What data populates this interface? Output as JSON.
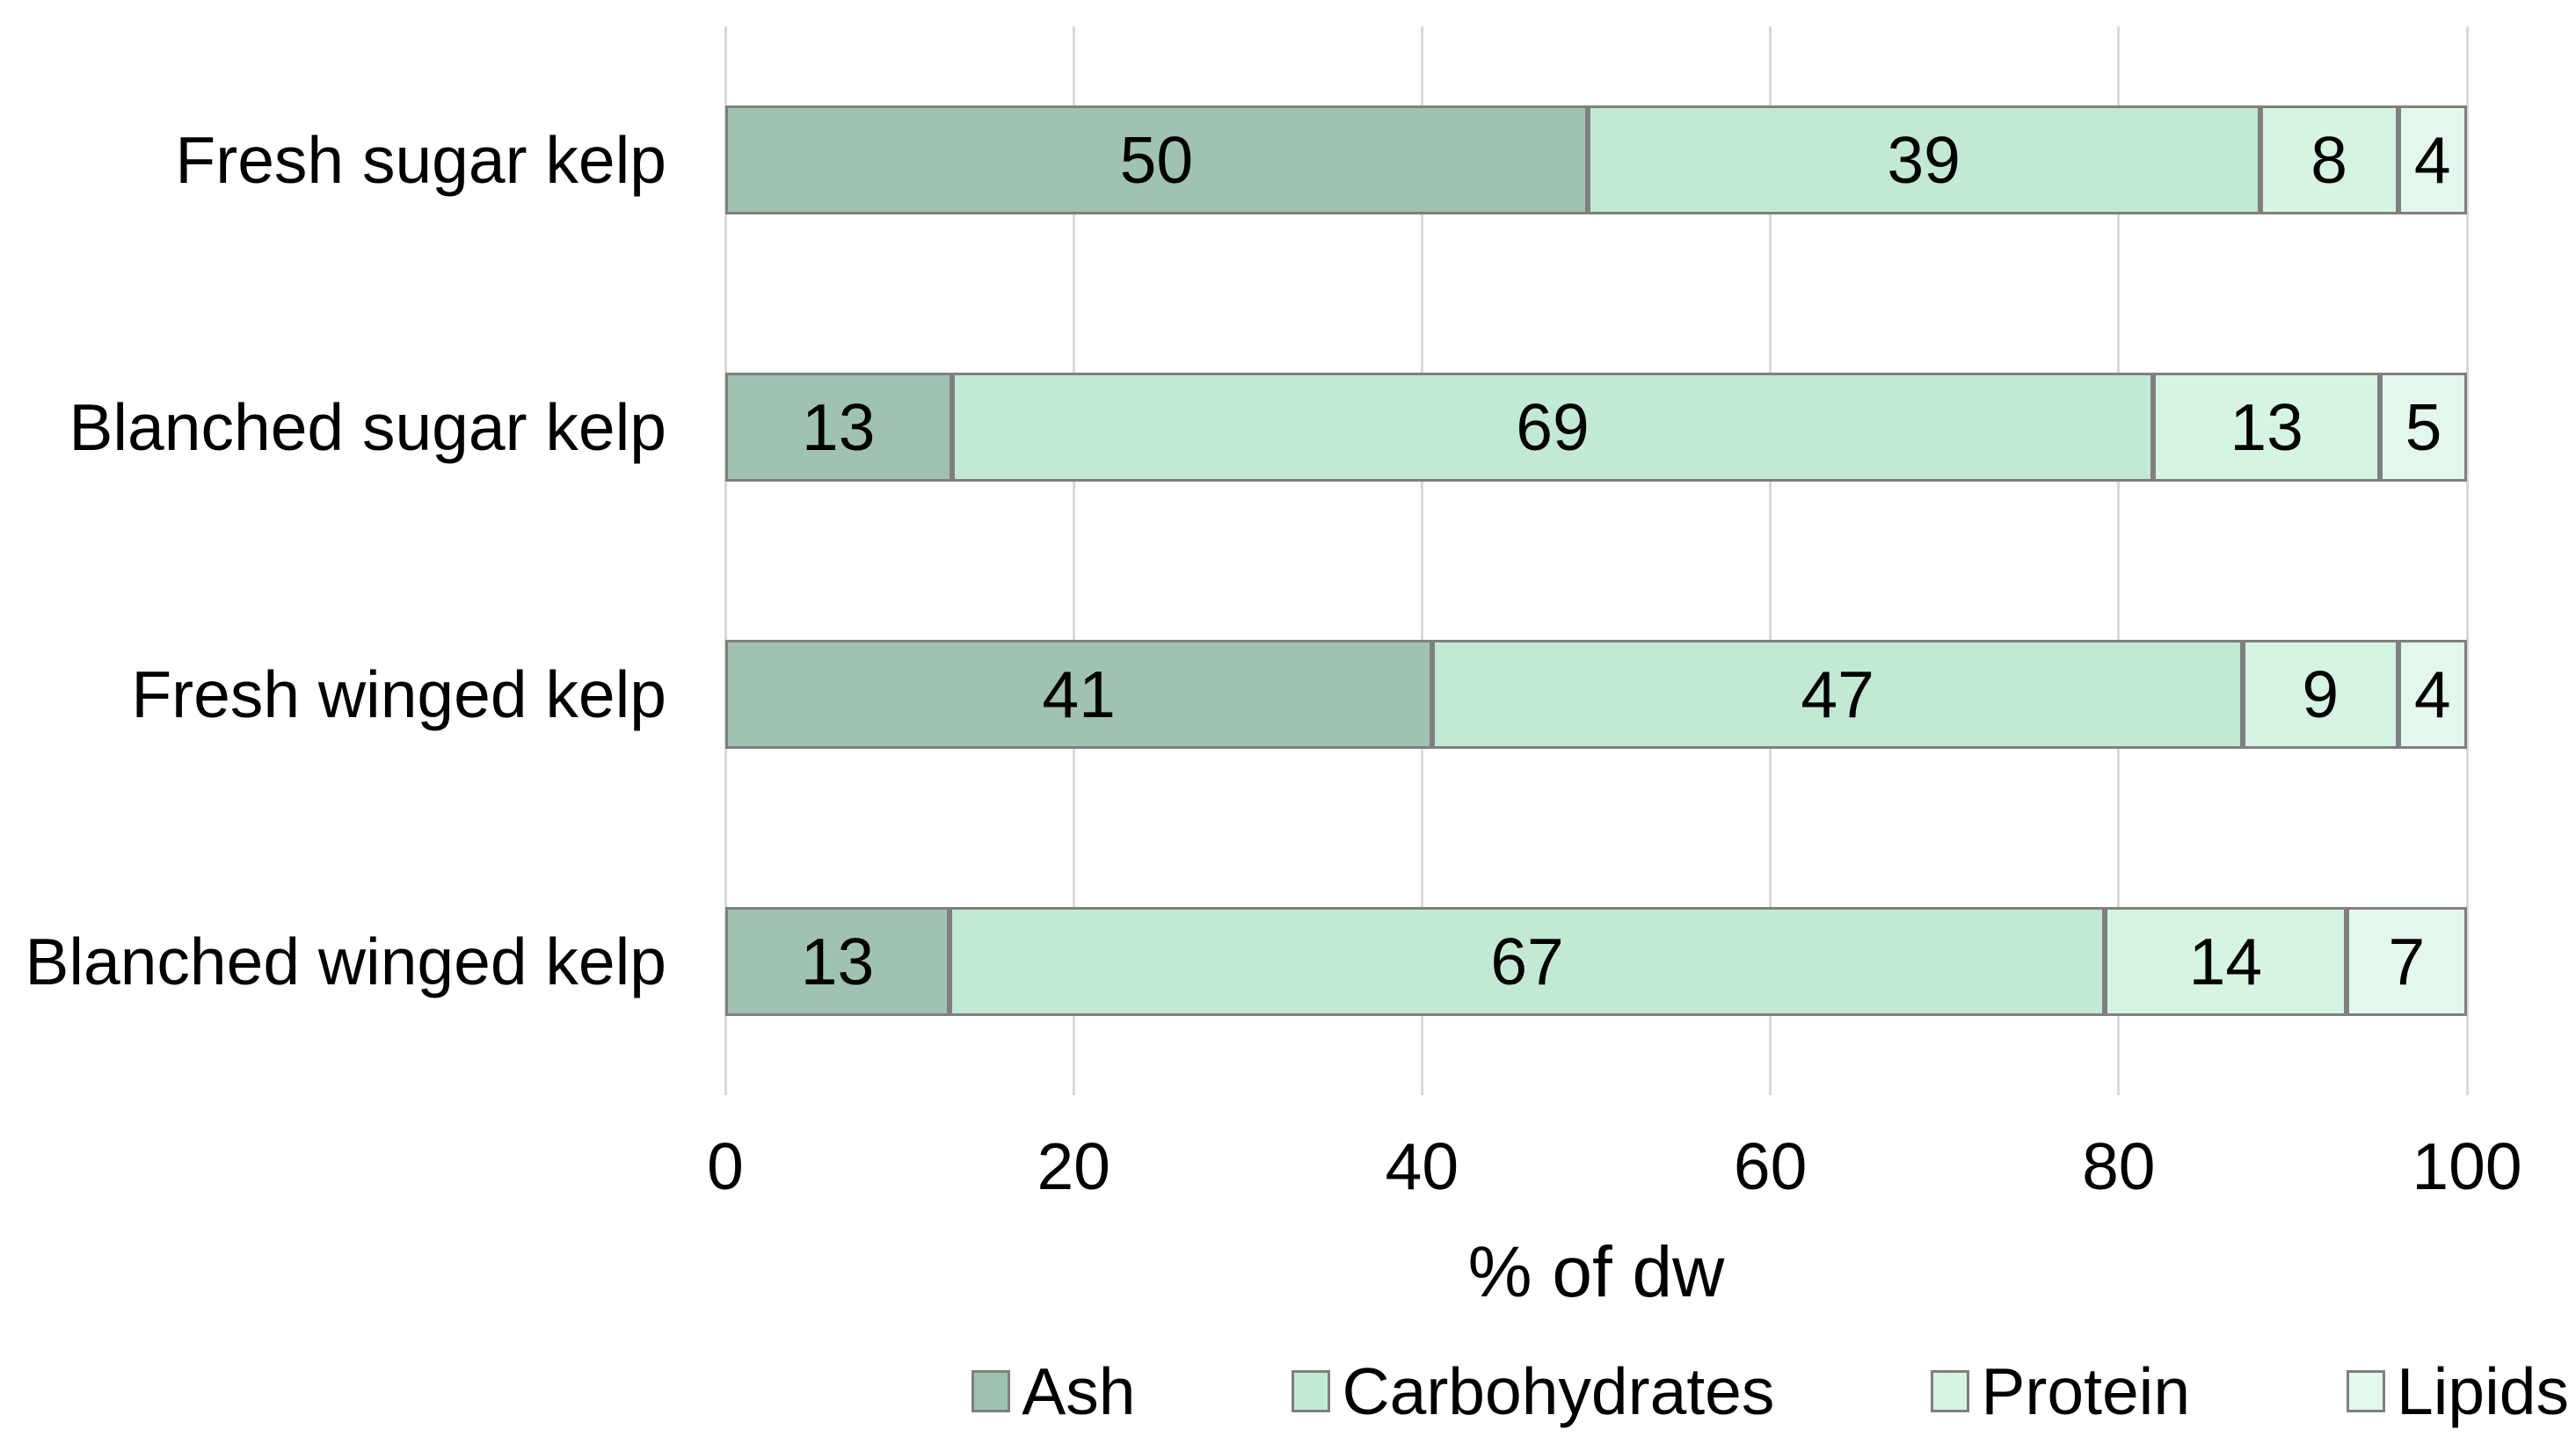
{
  "chart_data": {
    "type": "bar",
    "orientation": "horizontal",
    "stacked": true,
    "stacked_mode": "100%",
    "categories": [
      "Fresh sugar kelp",
      "Blanched sugar kelp",
      "Fresh winged kelp",
      "Blanched winged kelp"
    ],
    "series": [
      {
        "name": "Ash",
        "color": "#9fc3b0",
        "values": [
          50,
          13,
          41,
          13
        ]
      },
      {
        "name": "Carbohydrates",
        "color": "#c1e9d3",
        "values": [
          39,
          69,
          47,
          67
        ]
      },
      {
        "name": "Protein",
        "color": "#d5f4e2",
        "values": [
          8,
          13,
          9,
          14
        ]
      },
      {
        "name": "Lipids",
        "color": "#e3f7ea",
        "values": [
          4,
          5,
          4,
          7
        ]
      }
    ],
    "xlabel": "% of dw",
    "xlim": [
      0,
      100
    ],
    "xticks": [
      0,
      20,
      40,
      60,
      80,
      100
    ],
    "grid": true,
    "gridline_color": "#d9d9d9",
    "bar_border_color": "#7f7f7f",
    "legend_position": "bottom-right",
    "data_labels": true,
    "text_color": "#000000",
    "background_color": "#ffffff"
  }
}
